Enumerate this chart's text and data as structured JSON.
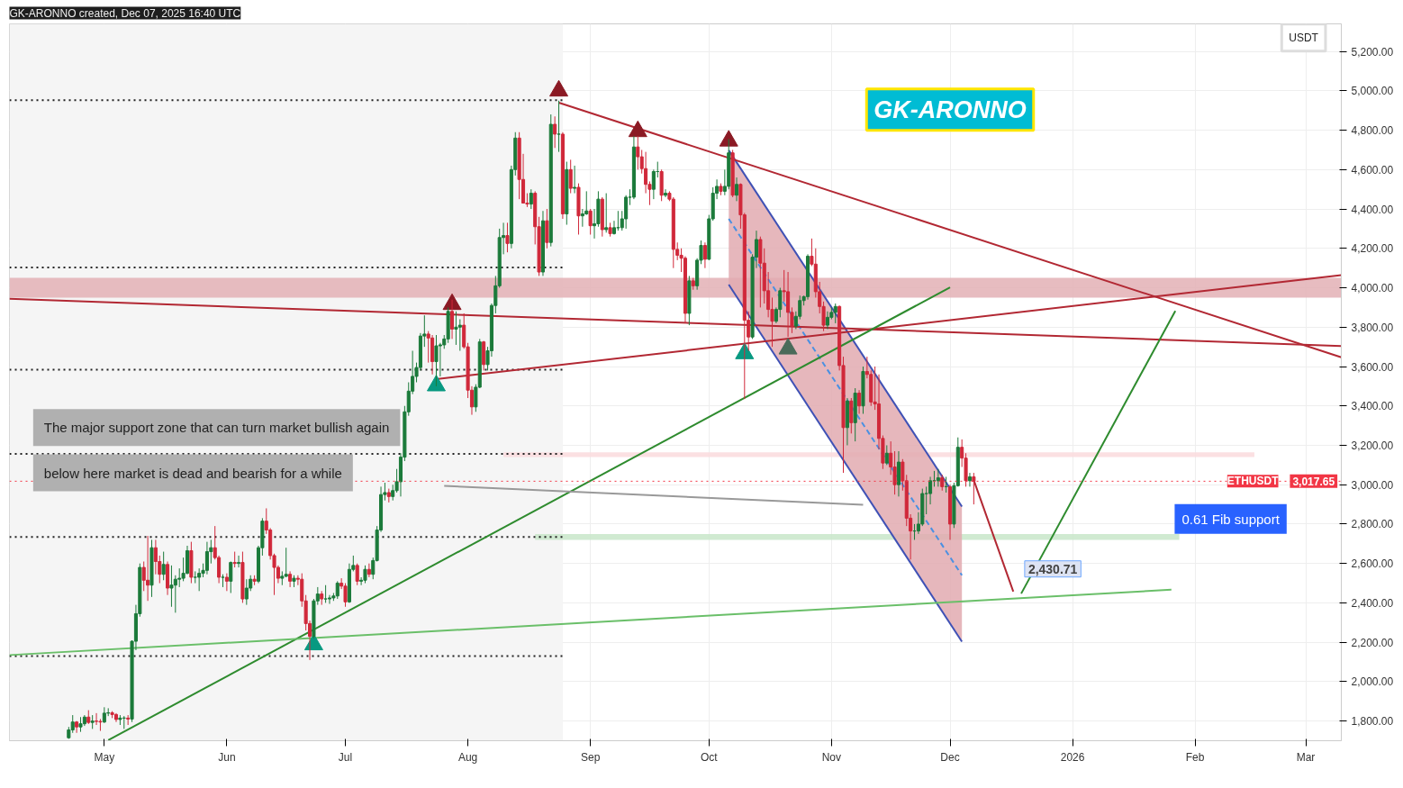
{
  "chart_data": {
    "type": "candlestick",
    "title": "GK-ARONNO created, Dec 07, 2025 16:40 UTC",
    "colors": [
      "#1b7a3a",
      "#1b7a3a",
      "#d0283a",
      "#1b7a3a",
      "#1b7a3a",
      "#d0283a",
      "#1b7a3a",
      "#d0283a",
      "#d0283a",
      "#1b7a3a",
      "#1b7a3a",
      "#d0283a",
      "#d0283a",
      "#1b7a3a",
      "#1b7a3a",
      "#d0283a",
      "#1b7a3a",
      "#1b7a3a",
      "#1b7a3a",
      "#d0283a",
      "#d0283a",
      "#1b7a3a",
      "#d0283a",
      "#d0283a",
      "#1b7a3a",
      "#d0283a",
      "#1b7a3a",
      "#1b7a3a",
      "#1b7a3a",
      "#1b7a3a",
      "#1b7a3a",
      "#d0283a",
      "#1b7a3a",
      "#1b7a3a",
      "#1b7a3a",
      "#1b7a3a",
      "#1b7a3a",
      "#d0283a",
      "#d0283a",
      "#1b7a3a",
      "#d0283a",
      "#1b7a3a",
      "#d0283a",
      "#1b7a3a",
      "#d0283a",
      "#1b7a3a",
      "#1b7a3a",
      "#d0283a",
      "#1b7a3a",
      "#1b7a3a",
      "#d0283a",
      "#d0283a",
      "#d0283a",
      "#d0283a",
      "#1b7a3a",
      "#1b7a3a",
      "#d0283a",
      "#1b7a3a",
      "#d0283a",
      "#d0283a",
      "#d0283a",
      "#d0283a",
      "#1b7a3a",
      "#1b7a3a",
      "#d0283a",
      "#1b7a3a",
      "#1b7a3a",
      "#1b7a3a",
      "#1b7a3a",
      "#d0283a",
      "#d0283a",
      "#1b7a3a",
      "#1b7a3a",
      "#d0283a",
      "#1b7a3a",
      "#1b7a3a",
      "#d0283a",
      "#1b7a3a",
      "#1b7a3a",
      "#1b7a3a",
      "#1b7a3a",
      "#d0283a",
      "#1b7a3a",
      "#1b7a3a",
      "#1b7a3a",
      "#1b7a3a",
      "#1b7a3a",
      "#1b7a3a",
      "#1b7a3a",
      "#1b7a3a",
      "#1b7a3a",
      "#d0283a",
      "#d0283a",
      "#1b7a3a",
      "#1b7a3a",
      "#1b7a3a",
      "#1b7a3a",
      "#d0283a",
      "#1b7a3a",
      "#1b7a3a",
      "#d0283a",
      "#d0283a",
      "#d0283a",
      "#1b7a3a",
      "#1b7a3a",
      "#d0283a",
      "#1b7a3a",
      "#1b7a3a",
      "#1b7a3a",
      "#1b7a3a",
      "#1b7a3a",
      "#d0283a",
      "#1b7a3a",
      "#1b7a3a",
      "#d0283a",
      "#d0283a",
      "#d0283a",
      "#1b7a3a",
      "#d0283a",
      "#d0283a",
      "#1b7a3a",
      "#d0283a",
      "#1b7a3a",
      "#d0283a",
      "#1b7a3a",
      "#d0283a",
      "#1b7a3a",
      "#d0283a",
      "#1b7a3a",
      "#d0283a",
      "#1b7a3a",
      "#1b7a3a",
      "#d0283a",
      "#1b7a3a",
      "#1b7a3a",
      "#d0283a",
      "#1b7a3a",
      "#d0283a",
      "#1b7a3a",
      "#1b7a3a",
      "#1b7a3a",
      "#1b7a3a",
      "#1b7a3a",
      "#1b7a3a",
      "#d0283a",
      "#d0283a",
      "#d0283a",
      "#d0283a",
      "#1b7a3a",
      "#1b7a3a",
      "#d0283a",
      "#1b7a3a",
      "#d0283a",
      "#d0283a",
      "#d0283a",
      "#d0283a",
      "#d0283a",
      "#1b7a3a",
      "#d0283a",
      "#1b7a3a",
      "#1b7a3a",
      "#d0283a",
      "#1b7a3a",
      "#1b7a3a",
      "#1b7a3a",
      "#d0283a",
      "#1b7a3a",
      "#1b7a3a",
      "#d0283a",
      "#1b7a3a",
      "#d0283a",
      "#d0283a",
      "#d0283a",
      "#1b7a3a",
      "#1b7a3a",
      "#d0283a",
      "#d0283a",
      "#d0283a",
      "#d0283a",
      "#1b7a3a",
      "#1b7a3a",
      "#d0283a",
      "#d0283a",
      "#d0283a",
      "#1b7a3a",
      "#1b7a3a",
      "#1b7a3a",
      "#1b7a3a",
      "#d0283a",
      "#d0283a",
      "#d0283a",
      "#d0283a",
      "#1b7a3a",
      "#1b7a3a",
      "#1b7a3a",
      "#d0283a",
      "#d0283a",
      "#1b7a3a",
      "#d0283a",
      "#1b7a3a",
      "#d0283a",
      "#1b7a3a",
      "#d0283a",
      "#d0283a",
      "#d0283a",
      "#d0283a",
      "#d0283a",
      "#1b7a3a",
      "#d0283a",
      "#d0283a",
      "#1b7a3a",
      "#d0283a",
      "#d0283a",
      "#d0283a",
      "#1b7a3a",
      "#1b7a3a",
      "#1b7a3a",
      "#1b7a3a",
      "#1b7a3a",
      "#1b7a3a",
      "#1b7a3a",
      "#d0283a",
      "#1b7a3a",
      "#d0283a",
      "#1b7a3a",
      "#1b7a3a",
      "#d0283a",
      "#d0283a",
      "#1b7a3a",
      "#d0283a"
    ],
    "x": [
      "2025-04-22",
      "2025-04-23",
      "2025-04-24",
      "2025-04-25",
      "2025-04-26",
      "2025-04-27",
      "2025-04-28",
      "2025-04-29",
      "2025-04-30",
      "2025-05-01",
      "2025-05-02",
      "2025-05-03",
      "2025-05-04",
      "2025-05-05",
      "2025-05-06",
      "2025-05-07",
      "2025-05-08",
      "2025-05-09",
      "2025-05-10",
      "2025-05-11",
      "2025-05-12",
      "2025-05-13",
      "2025-05-14",
      "2025-05-15",
      "2025-05-16",
      "2025-05-17",
      "2025-05-18",
      "2025-05-19",
      "2025-05-20",
      "2025-05-21",
      "2025-05-22",
      "2025-05-23",
      "2025-05-24",
      "2025-05-25",
      "2025-05-26",
      "2025-05-27",
      "2025-05-28",
      "2025-05-29",
      "2025-05-30",
      "2025-05-31",
      "2025-06-01",
      "2025-06-02",
      "2025-06-03",
      "2025-06-04",
      "2025-06-05",
      "2025-06-06",
      "2025-06-07",
      "2025-06-08",
      "2025-06-09",
      "2025-06-10",
      "2025-06-11",
      "2025-06-12",
      "2025-06-13",
      "2025-06-14",
      "2025-06-15",
      "2025-06-16",
      "2025-06-17",
      "2025-06-18",
      "2025-06-19",
      "2025-06-20",
      "2025-06-21",
      "2025-06-22",
      "2025-06-23",
      "2025-06-24",
      "2025-06-25",
      "2025-06-26",
      "2025-06-27",
      "2025-06-28",
      "2025-06-29",
      "2025-06-30",
      "2025-07-01",
      "2025-07-02",
      "2025-07-03",
      "2025-07-04",
      "2025-07-05",
      "2025-07-06",
      "2025-07-07",
      "2025-07-08",
      "2025-07-09",
      "2025-07-10",
      "2025-07-11",
      "2025-07-12",
      "2025-07-13",
      "2025-07-14",
      "2025-07-15",
      "2025-07-16",
      "2025-07-17",
      "2025-07-18",
      "2025-07-19",
      "2025-07-20",
      "2025-07-21",
      "2025-07-22",
      "2025-07-23",
      "2025-07-24",
      "2025-07-25",
      "2025-07-26",
      "2025-07-27",
      "2025-07-28",
      "2025-07-29",
      "2025-07-30",
      "2025-07-31",
      "2025-08-01",
      "2025-08-02",
      "2025-08-03",
      "2025-08-04",
      "2025-08-05",
      "2025-08-06",
      "2025-08-07",
      "2025-08-08",
      "2025-08-09",
      "2025-08-10",
      "2025-08-11",
      "2025-08-12",
      "2025-08-13",
      "2025-08-14",
      "2025-08-15",
      "2025-08-16",
      "2025-08-17",
      "2025-08-18",
      "2025-08-19",
      "2025-08-20",
      "2025-08-21",
      "2025-08-22",
      "2025-08-23",
      "2025-08-24",
      "2025-08-25",
      "2025-08-26",
      "2025-08-27",
      "2025-08-28",
      "2025-08-29",
      "2025-08-30",
      "2025-08-31",
      "2025-09-01",
      "2025-09-02",
      "2025-09-03",
      "2025-09-04",
      "2025-09-05",
      "2025-09-06",
      "2025-09-07",
      "2025-09-08",
      "2025-09-09",
      "2025-09-10",
      "2025-09-11",
      "2025-09-12",
      "2025-09-13",
      "2025-09-14",
      "2025-09-15",
      "2025-09-16",
      "2025-09-17",
      "2025-09-18",
      "2025-09-19",
      "2025-09-20",
      "2025-09-21",
      "2025-09-22",
      "2025-09-23",
      "2025-09-24",
      "2025-09-25",
      "2025-09-26",
      "2025-09-27",
      "2025-09-28",
      "2025-09-29",
      "2025-09-30",
      "2025-10-01",
      "2025-10-02",
      "2025-10-03",
      "2025-10-04",
      "2025-10-05",
      "2025-10-06",
      "2025-10-07",
      "2025-10-08",
      "2025-10-09",
      "2025-10-10",
      "2025-10-11",
      "2025-10-12",
      "2025-10-13",
      "2025-10-14",
      "2025-10-15",
      "2025-10-16",
      "2025-10-17",
      "2025-10-18",
      "2025-10-19",
      "2025-10-20",
      "2025-10-21",
      "2025-10-22",
      "2025-10-23",
      "2025-10-24",
      "2025-10-25",
      "2025-10-26",
      "2025-10-27",
      "2025-10-28",
      "2025-10-29",
      "2025-10-30",
      "2025-10-31",
      "2025-11-01",
      "2025-11-02",
      "2025-11-03",
      "2025-11-04",
      "2025-11-05",
      "2025-11-06",
      "2025-11-07",
      "2025-11-08",
      "2025-11-09",
      "2025-11-10",
      "2025-11-11",
      "2025-11-12",
      "2025-11-13",
      "2025-11-14",
      "2025-11-15",
      "2025-11-16",
      "2025-11-17",
      "2025-11-18",
      "2025-11-19",
      "2025-11-20",
      "2025-11-21",
      "2025-11-22",
      "2025-11-23",
      "2025-11-24",
      "2025-11-25",
      "2025-11-26",
      "2025-11-27",
      "2025-11-28",
      "2025-11-29",
      "2025-11-30",
      "2025-12-01",
      "2025-12-02",
      "2025-12-03",
      "2025-12-04",
      "2025-12-05",
      "2025-12-06",
      "2025-12-07"
    ],
    "ohlc": [
      [
        1715,
        1770,
        1710,
        1755
      ],
      [
        1755,
        1830,
        1740,
        1795
      ],
      [
        1795,
        1800,
        1740,
        1770
      ],
      [
        1770,
        1820,
        1745,
        1786
      ],
      [
        1786,
        1830,
        1775,
        1820
      ],
      [
        1820,
        1855,
        1785,
        1793
      ],
      [
        1793,
        1830,
        1760,
        1800
      ],
      [
        1800,
        1840,
        1780,
        1798
      ],
      [
        1798,
        1810,
        1750,
        1795
      ],
      [
        1795,
        1870,
        1790,
        1840
      ],
      [
        1840,
        1865,
        1825,
        1842
      ],
      [
        1842,
        1850,
        1815,
        1833
      ],
      [
        1833,
        1840,
        1795,
        1808
      ],
      [
        1808,
        1830,
        1780,
        1815
      ],
      [
        1815,
        1825,
        1760,
        1815
      ],
      [
        1815,
        1830,
        1780,
        1810
      ],
      [
        1810,
        2210,
        1795,
        2205
      ],
      [
        2205,
        2390,
        2160,
        2345
      ],
      [
        2345,
        2600,
        2330,
        2580
      ],
      [
        2580,
        2610,
        2460,
        2515
      ],
      [
        2515,
        2740,
        2410,
        2490
      ],
      [
        2490,
        2720,
        2430,
        2680
      ],
      [
        2680,
        2720,
        2545,
        2610
      ],
      [
        2610,
        2640,
        2500,
        2545
      ],
      [
        2545,
        2660,
        2515,
        2595
      ],
      [
        2595,
        2610,
        2440,
        2475
      ],
      [
        2475,
        2590,
        2380,
        2490
      ],
      [
        2490,
        2540,
        2350,
        2520
      ],
      [
        2520,
        2575,
        2480,
        2525
      ],
      [
        2525,
        2630,
        2510,
        2550
      ],
      [
        2550,
        2690,
        2545,
        2665
      ],
      [
        2665,
        2710,
        2500,
        2530
      ],
      [
        2530,
        2560,
        2500,
        2530
      ],
      [
        2530,
        2575,
        2460,
        2550
      ],
      [
        2550,
        2600,
        2530,
        2565
      ],
      [
        2565,
        2710,
        2545,
        2660
      ],
      [
        2660,
        2720,
        2600,
        2680
      ],
      [
        2680,
        2790,
        2620,
        2630
      ],
      [
        2630,
        2640,
        2500,
        2530
      ],
      [
        2530,
        2545,
        2480,
        2530
      ],
      [
        2530,
        2550,
        2460,
        2510
      ],
      [
        2510,
        2610,
        2450,
        2605
      ],
      [
        2605,
        2660,
        2580,
        2600
      ],
      [
        2600,
        2640,
        2580,
        2605
      ],
      [
        2605,
        2660,
        2400,
        2420
      ],
      [
        2420,
        2520,
        2390,
        2475
      ],
      [
        2475,
        2540,
        2460,
        2520
      ],
      [
        2520,
        2540,
        2490,
        2510
      ],
      [
        2510,
        2690,
        2500,
        2680
      ],
      [
        2680,
        2830,
        2640,
        2815
      ],
      [
        2815,
        2880,
        2750,
        2770
      ],
      [
        2770,
        2780,
        2620,
        2640
      ],
      [
        2640,
        2650,
        2440,
        2580
      ],
      [
        2580,
        2590,
        2500,
        2525
      ],
      [
        2525,
        2560,
        2490,
        2535
      ],
      [
        2535,
        2680,
        2530,
        2545
      ],
      [
        2545,
        2560,
        2480,
        2510
      ],
      [
        2510,
        2540,
        2480,
        2525
      ],
      [
        2525,
        2540,
        2490,
        2520
      ],
      [
        2520,
        2550,
        2380,
        2410
      ],
      [
        2410,
        2440,
        2260,
        2295
      ],
      [
        2295,
        2310,
        2110,
        2230
      ],
      [
        2230,
        2420,
        2220,
        2410
      ],
      [
        2410,
        2480,
        2390,
        2445
      ],
      [
        2445,
        2460,
        2390,
        2420
      ],
      [
        2420,
        2490,
        2400,
        2420
      ],
      [
        2420,
        2440,
        2395,
        2425
      ],
      [
        2425,
        2450,
        2410,
        2435
      ],
      [
        2435,
        2510,
        2420,
        2500
      ],
      [
        2500,
        2525,
        2470,
        2485
      ],
      [
        2485,
        2500,
        2380,
        2405
      ],
      [
        2405,
        2600,
        2400,
        2570
      ],
      [
        2570,
        2640,
        2560,
        2590
      ],
      [
        2590,
        2600,
        2490,
        2510
      ],
      [
        2510,
        2530,
        2490,
        2515
      ],
      [
        2515,
        2590,
        2500,
        2570
      ],
      [
        2570,
        2600,
        2530,
        2545
      ],
      [
        2545,
        2630,
        2520,
        2615
      ],
      [
        2615,
        2790,
        2610,
        2770
      ],
      [
        2770,
        2990,
        2760,
        2950
      ],
      [
        2950,
        3010,
        2920,
        2960
      ],
      [
        2960,
        2980,
        2910,
        2940
      ],
      [
        2940,
        3000,
        2920,
        2970
      ],
      [
        2970,
        3080,
        2960,
        3015
      ],
      [
        3015,
        3160,
        2940,
        3140
      ],
      [
        3140,
        3400,
        3120,
        3370
      ],
      [
        3370,
        3520,
        3350,
        3475
      ],
      [
        3475,
        3680,
        3460,
        3550
      ],
      [
        3550,
        3620,
        3520,
        3595
      ],
      [
        3595,
        3770,
        3580,
        3755
      ],
      [
        3755,
        3860,
        3700,
        3765
      ],
      [
        3765,
        3780,
        3620,
        3745
      ],
      [
        3745,
        3760,
        3560,
        3625
      ],
      [
        3625,
        3760,
        3500,
        3705
      ],
      [
        3705,
        3720,
        3550,
        3710
      ],
      [
        3710,
        3760,
        3690,
        3740
      ],
      [
        3740,
        3900,
        3720,
        3880
      ],
      [
        3880,
        3940,
        3740,
        3790
      ],
      [
        3790,
        3880,
        3710,
        3800
      ],
      [
        3800,
        3840,
        3680,
        3810
      ],
      [
        3810,
        3870,
        3690,
        3700
      ],
      [
        3700,
        3720,
        3440,
        3480
      ],
      [
        3480,
        3500,
        3355,
        3395
      ],
      [
        3395,
        3510,
        3370,
        3495
      ],
      [
        3495,
        3740,
        3490,
        3725
      ],
      [
        3725,
        3730,
        3580,
        3610
      ],
      [
        3610,
        3700,
        3580,
        3680
      ],
      [
        3680,
        3920,
        3650,
        3910
      ],
      [
        3910,
        4060,
        3870,
        4010
      ],
      [
        4010,
        4300,
        4000,
        4255
      ],
      [
        4255,
        4330,
        4170,
        4265
      ],
      [
        4265,
        4330,
        4180,
        4225
      ],
      [
        4225,
        4620,
        4200,
        4600
      ],
      [
        4600,
        4790,
        4570,
        4760
      ],
      [
        4760,
        4790,
        4450,
        4550
      ],
      [
        4550,
        4680,
        4430,
        4430
      ],
      [
        4430,
        4480,
        4410,
        4425
      ],
      [
        4425,
        4500,
        4400,
        4480
      ],
      [
        4480,
        4490,
        4220,
        4310
      ],
      [
        4310,
        4360,
        4060,
        4080
      ],
      [
        4080,
        4390,
        4060,
        4340
      ],
      [
        4340,
        4400,
        4200,
        4230
      ],
      [
        4230,
        4880,
        4210,
        4830
      ],
      [
        4830,
        4870,
        4710,
        4780
      ],
      [
        4780,
        4950,
        4690,
        4780
      ],
      [
        4780,
        4790,
        4350,
        4375
      ],
      [
        4375,
        4640,
        4320,
        4600
      ],
      [
        4600,
        4650,
        4480,
        4505
      ],
      [
        4505,
        4620,
        4480,
        4510
      ],
      [
        4510,
        4530,
        4270,
        4365
      ],
      [
        4365,
        4400,
        4310,
        4375
      ],
      [
        4375,
        4490,
        4370,
        4390
      ],
      [
        4390,
        4400,
        4270,
        4315
      ],
      [
        4315,
        4400,
        4250,
        4325
      ],
      [
        4325,
        4490,
        4310,
        4450
      ],
      [
        4450,
        4460,
        4260,
        4295
      ],
      [
        4295,
        4480,
        4280,
        4305
      ],
      [
        4305,
        4330,
        4260,
        4275
      ],
      [
        4275,
        4340,
        4270,
        4305
      ],
      [
        4305,
        4390,
        4290,
        4305
      ],
      [
        4305,
        4390,
        4290,
        4350
      ],
      [
        4350,
        4470,
        4300,
        4460
      ],
      [
        4460,
        4500,
        4420,
        4460
      ],
      [
        4460,
        4770,
        4450,
        4715
      ],
      [
        4715,
        4770,
        4600,
        4665
      ],
      [
        4665,
        4700,
        4580,
        4605
      ],
      [
        4605,
        4690,
        4480,
        4525
      ],
      [
        4525,
        4540,
        4420,
        4500
      ],
      [
        4500,
        4600,
        4450,
        4590
      ],
      [
        4590,
        4640,
        4560,
        4590
      ],
      [
        4590,
        4600,
        4440,
        4470
      ],
      [
        4470,
        4500,
        4460,
        4480
      ],
      [
        4480,
        4490,
        4440,
        4450
      ],
      [
        4450,
        4460,
        4100,
        4195
      ],
      [
        4195,
        4230,
        4140,
        4165
      ],
      [
        4165,
        4200,
        4080,
        4150
      ],
      [
        4150,
        4160,
        3820,
        3870
      ],
      [
        3870,
        4060,
        3810,
        4035
      ],
      [
        4035,
        4050,
        3990,
        4010
      ],
      [
        4010,
        4150,
        3990,
        4140
      ],
      [
        4140,
        4240,
        4120,
        4215
      ],
      [
        4215,
        4230,
        4100,
        4145
      ],
      [
        4145,
        4370,
        4140,
        4350
      ],
      [
        4350,
        4510,
        4340,
        4480
      ],
      [
        4480,
        4550,
        4450,
        4515
      ],
      [
        4515,
        4530,
        4470,
        4490
      ],
      [
        4490,
        4600,
        4470,
        4515
      ],
      [
        4515,
        4755,
        4500,
        4685
      ],
      [
        4685,
        4700,
        4460,
        4470
      ],
      [
        4470,
        4560,
        4440,
        4525
      ],
      [
        4525,
        4530,
        4300,
        4370
      ],
      [
        4370,
        4380,
        3435,
        3835
      ],
      [
        3835,
        3880,
        3680,
        3750
      ],
      [
        3750,
        4170,
        3740,
        4155
      ],
      [
        4155,
        4290,
        4100,
        4245
      ],
      [
        4245,
        4260,
        3900,
        4125
      ],
      [
        4125,
        4200,
        3920,
        3985
      ],
      [
        3985,
        4080,
        3850,
        3890
      ],
      [
        3890,
        3950,
        3700,
        3830
      ],
      [
        3830,
        3900,
        3820,
        3890
      ],
      [
        3890,
        4000,
        3850,
        3985
      ],
      [
        3985,
        4090,
        3930,
        3980
      ],
      [
        3980,
        4080,
        3750,
        3875
      ],
      [
        3875,
        3900,
        3770,
        3805
      ],
      [
        3805,
        3880,
        3790,
        3855
      ],
      [
        3855,
        3960,
        3840,
        3935
      ],
      [
        3935,
        3960,
        3910,
        3955
      ],
      [
        3955,
        4170,
        3940,
        4160
      ],
      [
        4160,
        4250,
        4110,
        4120
      ],
      [
        4120,
        4200,
        3950,
        3980
      ],
      [
        3980,
        4030,
        3870,
        3905
      ],
      [
        3905,
        3930,
        3780,
        3810
      ],
      [
        3810,
        3880,
        3790,
        3850
      ],
      [
        3850,
        3900,
        3840,
        3875
      ],
      [
        3875,
        3920,
        3820,
        3905
      ],
      [
        3905,
        3910,
        3580,
        3605
      ],
      [
        3605,
        3650,
        3060,
        3290
      ],
      [
        3290,
        3440,
        3200,
        3425
      ],
      [
        3425,
        3440,
        3260,
        3315
      ],
      [
        3315,
        3490,
        3220,
        3465
      ],
      [
        3465,
        3480,
        3360,
        3400
      ],
      [
        3400,
        3600,
        3360,
        3575
      ],
      [
        3575,
        3650,
        3540,
        3560
      ],
      [
        3560,
        3580,
        3400,
        3420
      ],
      [
        3420,
        3600,
        3380,
        3410
      ],
      [
        3410,
        3560,
        3180,
        3235
      ],
      [
        3235,
        3250,
        3080,
        3110
      ],
      [
        3110,
        3200,
        3100,
        3160
      ],
      [
        3160,
        3220,
        3050,
        3090
      ],
      [
        3090,
        3170,
        2950,
        3000
      ],
      [
        3000,
        3170,
        2940,
        3115
      ],
      [
        3115,
        3130,
        2970,
        3020
      ],
      [
        3020,
        3050,
        2790,
        2830
      ],
      [
        2830,
        2850,
        2620,
        2765
      ],
      [
        2765,
        2800,
        2720,
        2765
      ],
      [
        2765,
        2860,
        2750,
        2800
      ],
      [
        2800,
        2980,
        2790,
        2955
      ],
      [
        2955,
        2990,
        2850,
        2955
      ],
      [
        2955,
        3040,
        2900,
        3020
      ],
      [
        3020,
        3070,
        2990,
        3020
      ],
      [
        3020,
        3080,
        2990,
        3035
      ],
      [
        3035,
        3050,
        2970,
        2990
      ],
      [
        2990,
        3040,
        2960,
        2990
      ],
      [
        2990,
        3000,
        2720,
        2800
      ],
      [
        2800,
        3010,
        2780,
        2995
      ],
      [
        2995,
        3240,
        2990,
        3190
      ],
      [
        3190,
        3230,
        3090,
        3135
      ],
      [
        3135,
        3160,
        2990,
        3020
      ],
      [
        3020,
        3060,
        2990,
        3040
      ],
      [
        3040,
        3060,
        2900,
        3017.65
      ]
    ],
    "xlim": [
      "2025-04-07",
      "2026-03-10"
    ],
    "xticks": [
      {
        "value": "2025-05-01",
        "label": "May"
      },
      {
        "value": "2025-06-01",
        "label": "Jun"
      },
      {
        "value": "2025-07-01",
        "label": "Jul"
      },
      {
        "value": "2025-08-01",
        "label": "Aug"
      },
      {
        "value": "2025-09-01",
        "label": "Sep"
      },
      {
        "value": "2025-10-01",
        "label": "Oct"
      },
      {
        "value": "2025-11-01",
        "label": "Nov"
      },
      {
        "value": "2025-12-01",
        "label": "Dec"
      },
      {
        "value": "2026-01-01",
        "label": "2026"
      },
      {
        "value": "2026-02-01",
        "label": "Feb"
      },
      {
        "value": "2026-03-01",
        "label": "Mar"
      }
    ],
    "ylim": [
      1700,
      5340
    ],
    "yticks": [
      {
        "value": 1800,
        "label": "1,800.00"
      },
      {
        "value": 2000,
        "label": "2,000.00"
      },
      {
        "value": 2200,
        "label": "2,200.00"
      },
      {
        "value": 2400,
        "label": "2,400.00"
      },
      {
        "value": 2600,
        "label": "2,600.00"
      },
      {
        "value": 2800,
        "label": "2,800.00"
      },
      {
        "value": 3000,
        "label": "3,000.00"
      },
      {
        "value": 3200,
        "label": "3,200.00"
      },
      {
        "value": 3400,
        "label": "3,400.00"
      },
      {
        "value": 3600,
        "label": "3,600.00"
      },
      {
        "value": 3800,
        "label": "3,800.00"
      },
      {
        "value": 4000,
        "label": "4,000.00"
      },
      {
        "value": 4200,
        "label": "4,200.00"
      },
      {
        "value": 4400,
        "label": "4,400.00"
      },
      {
        "value": 4600,
        "label": "4,600.00"
      },
      {
        "value": 4800,
        "label": "4,800.00"
      },
      {
        "value": 5000,
        "label": "5,000.00"
      },
      {
        "value": 5200,
        "label": "5,200.00"
      }
    ],
    "grid": true,
    "bands": [
      {
        "axis": "x",
        "from": "2025-04-07",
        "to": "2025-08-25",
        "color": "#f5f5f5"
      }
    ],
    "ref_lines": [
      {
        "axis": "y",
        "value": 3017.65,
        "label": "ETHUSDT",
        "color": "#f23645",
        "line_style": "dotted"
      }
    ],
    "series": [
      {
        "type": "line",
        "color": "#e3b0b5",
        "x": [
          "2025-04-07",
          "2026-03-10"
        ],
        "values": [
          null,
          null
        ],
        "upper": [
          4050,
          4050
        ],
        "lower": [
          3950,
          3950
        ]
      },
      {
        "type": "line",
        "color": "#fadadd",
        "x": [
          "2025-08-10",
          "2026-02-16"
        ],
        "values": [
          null,
          null
        ],
        "upper": [
          3165,
          3165
        ],
        "lower": [
          3140,
          3140
        ]
      },
      {
        "type": "line",
        "color": "#c8e6c9",
        "x": [
          "2025-08-18",
          "2026-01-28"
        ],
        "values": [
          null,
          null
        ],
        "upper": [
          2750,
          2750
        ],
        "lower": [
          2720,
          2720
        ]
      },
      {
        "type": "line",
        "color": "#e2aab0",
        "x": [
          "2025-10-06",
          "2025-12-04"
        ],
        "values": [
          null,
          null
        ],
        "upper": [
          4698,
          2889
        ],
        "lower": [
          4016,
          2203
        ]
      },
      {
        "type": "line",
        "color": "#3f51b5",
        "x": [
          "2025-10-06",
          "2025-12-04"
        ],
        "values": [
          4698,
          2889
        ]
      },
      {
        "type": "line",
        "color": "#3f51b5",
        "x": [
          "2025-10-06",
          "2025-12-04"
        ],
        "values": [
          4016,
          2203
        ]
      },
      {
        "type": "line",
        "color": "#4a90e2",
        "line_style": "dashed",
        "x": [
          "2025-10-06",
          "2025-12-04"
        ],
        "values": [
          4350,
          2540
        ]
      },
      {
        "type": "line",
        "color": "#222222",
        "line_style": "dotted",
        "x": [
          "2025-04-07",
          "2025-08-25"
        ],
        "values": [
          4952,
          4952
        ]
      },
      {
        "type": "line",
        "color": "#222222",
        "line_style": "dotted",
        "x": [
          "2025-04-07",
          "2025-08-25"
        ],
        "values": [
          4103,
          4103
        ]
      },
      {
        "type": "line",
        "color": "#222222",
        "line_style": "dotted",
        "x": [
          "2025-04-07",
          "2025-08-25"
        ],
        "values": [
          3584,
          3584
        ]
      },
      {
        "type": "line",
        "color": "#222222",
        "line_style": "dotted",
        "x": [
          "2025-04-07",
          "2025-08-25"
        ],
        "values": [
          3157,
          3157
        ]
      },
      {
        "type": "line",
        "color": "#222222",
        "line_style": "dotted",
        "x": [
          "2025-04-07",
          "2025-08-25"
        ],
        "values": [
          2735,
          2735
        ]
      },
      {
        "type": "line",
        "color": "#222222",
        "line_style": "dotted",
        "x": [
          "2025-04-07",
          "2025-08-25"
        ],
        "values": [
          2130,
          2130
        ]
      },
      {
        "type": "line",
        "color": "#b22833",
        "x": [
          "2025-08-24",
          "2026-03-10"
        ],
        "values": [
          4940,
          3647
        ]
      },
      {
        "type": "line",
        "color": "#b22833",
        "x": [
          "2025-04-07",
          "2026-03-10"
        ],
        "values": [
          3944,
          3704
        ]
      },
      {
        "type": "line",
        "color": "#b22833",
        "x": [
          "2025-07-24",
          "2026-03-10"
        ],
        "values": [
          3536,
          4064
        ]
      },
      {
        "type": "line",
        "color": "#2e8b2e",
        "x": [
          "2025-05-02",
          "2025-12-01"
        ],
        "values": [
          1703,
          4002
        ]
      },
      {
        "type": "line",
        "color": "#6abf69",
        "x": [
          "2025-04-07",
          "2026-01-26"
        ],
        "values": [
          2135,
          2467
        ]
      },
      {
        "type": "line",
        "color": "#2e8b2e",
        "x": [
          "2025-12-19",
          "2026-01-27"
        ],
        "values": [
          2447,
          3882
        ]
      },
      {
        "type": "line",
        "color": "#b22833",
        "x": [
          "2025-12-07",
          "2025-12-17"
        ],
        "values": [
          3023,
          2457
        ]
      },
      {
        "type": "line",
        "color": "#999999",
        "x": [
          "2025-07-26",
          "2025-11-09"
        ],
        "values": [
          2994,
          2898
        ]
      },
      {
        "type": "scatter",
        "marker": "triangle",
        "color": "#8b1a24",
        "x": [
          "2025-08-24",
          "2025-09-13",
          "2025-10-06",
          "2025-07-28"
        ],
        "values": [
          5000,
          4794,
          4746,
          3916
        ]
      },
      {
        "type": "scatter",
        "marker": "triangle",
        "color": "#089981",
        "x": [
          "2025-07-24",
          "2025-10-10",
          "2025-06-23"
        ],
        "values": [
          3503,
          3666,
          2188
        ]
      },
      {
        "type": "scatter",
        "marker": "triangle",
        "color": "#4a6b5a",
        "x": [
          "2025-10-21"
        ],
        "values": [
          3690
        ]
      }
    ],
    "annotations": [
      "GK-ARONNO",
      "The major support zone that can turn market bullish again",
      "below here market is dead and bearish for a while",
      "0.61 Fib support",
      "USDT",
      "3,017.65",
      {
        "text": "2,430.71",
        "x": "2025-12-27",
        "y": 2430.71
      }
    ]
  }
}
